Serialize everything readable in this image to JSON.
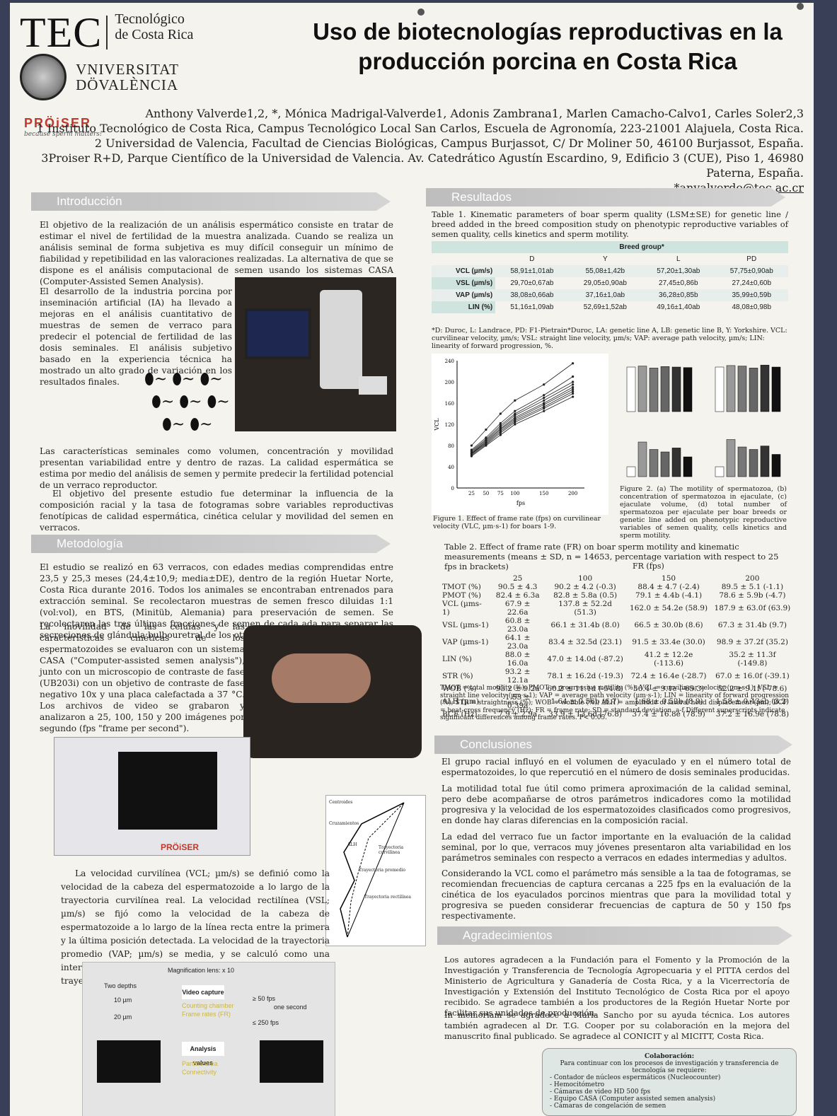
{
  "header": {
    "tec_logo": "TEC",
    "tec_name_1": "Tecnológico",
    "tec_name_2": "de Costa Rica",
    "uv_1": "VNIVERSITAT",
    "uv_2": "DÖVALÈNCIA",
    "proiser": "PRÖiSER",
    "proiser_tag": "because sperm matters!",
    "title_1": "Uso de biotecnologías reproductivas en la",
    "title_2": "producción porcina en Costa Rica"
  },
  "authors": {
    "line1": "Anthony Valverde1,2, *, Mónica Madrigal-Valverde1, Adonis Zambrana1, Marlen Camacho-Calvo1, Carles Soler2,3",
    "line2": "1 Instituto Tecnológico de Costa Rica, Campus Tecnológico Local San Carlos, Escuela de Agronomía, 223-21001 Alajuela, Costa Rica.",
    "line3": "2 Universidad de Valencia, Facultad de Ciencias Biológicas, Campus Burjassot, C/ Dr Moliner 50, 46100 Burjassot, España.",
    "line4": "3Proiser R+D, Parque Científico de la Universidad de Valencia. Av. Catedrático Agustín Escardino, 9, Edificio 3 (CUE), Piso 1, 46980 Paterna, España.",
    "email": "*anvalverde@tec.ac.cr"
  },
  "sections": {
    "intro": "Introducción",
    "metodo": "Metodología",
    "resultados": "Resultados",
    "conclusiones": "Conclusiones",
    "agradecimientos": "Agradecimientos"
  },
  "intro": {
    "p1": "El objetivo de la realización de un análisis espermático consiste en tratar de estimar el nivel de fertilidad de la muestra analizada. Cuando se realiza un análisis seminal de forma subjetiva es muy difícil conseguir un mínimo de fiabilidad y repetibilidad en las valoraciones realizadas. La alternativa de que se dispone es el análisis computacional de semen usando los sistemas CASA (Computer-Assisted Semen Analysis).",
    "p2": "El desarrollo de la industria porcina por inseminación artificial (IA) ha llevado a mejoras en el análisis cuantitativo de muestras de semen de verraco para predecir el potencial de fertilidad de las dosis seminales. El análisis subjetivo basado en la experiencia técnica ha mostrado un alto grado de variación en los resultados finales.",
    "p3": "Las características seminales como volumen, concentración y movilidad presentan variabilidad entre y dentro de razas. La calidad espermática se estima por medio del análisis de semen y permite predecir la fertilidad potencial de un verraco reproductor.",
    "p4": "El objetivo del presente estudio fue determinar la influencia de la composición racial y la tasa de fotogramas sobre variables reproductivas fenotípicas de calidad espermática, cinética celular y movilidad del semen en verracos."
  },
  "metodo": {
    "p1": "El estudio se realizó en 63 verracos, con edades medias comprendidas entre 23,5 y 25,3 meses (24,4±10,9; media±DE), dentro de la región Huetar Norte, Costa Rica durante 2016. Todos los animales se encontraban entrenados para extracción seminal. Se recolectaron muestras de semen fresco diluidas 1:1 (vol:vol), en BTS, (Minitüb, Alemania) para preservación de semen. Se recolectaron las tres últimas fracciones de semen de cada ada para separar las secreciones de glándula bulbouretral de los otros constituyentes del semen.",
    "p2": "La movilidad de las células y las características cinéticas de los espermatozoides se evaluaron con un sistema CASA (\"Computer-assisted semen analysis\"), junto con un microscopio de contraste de fase (UB203i) con un objetivo de contraste de fase negativo 10x y una placa calefactada a 37 °C. Los archivos de video se grabaron y analizaron a 25, 100, 150 y 200 imágenes por segundo (fps \"frame per second\").",
    "p3": "La velocidad curvilínea (VCL; µm/s) se definió como la velocidad de la cabeza del espermatozoide a lo largo de la trayectoria curvilínea real. La velocidad rectilínea (VSL; µm/s) se fijó como la velocidad de la cabeza de espermatozoide a lo largo de la línea recta entre la primera y la última posición detectada. La velocidad de la trayectoria promedio (VAP; µm/s) se media, y se calculó como una interpolación entre los puntos correspondientes a la trayectoria de la VCL.",
    "magnif": "Magnification lens: x 10",
    "two_depths": "Two depths",
    "d10": "10 µm",
    "d20": "20 µm",
    "video": "Video capture",
    "vid1": "Counting chamber",
    "vid2": "Frame rates (FR)",
    "analysis": "Analysis values",
    "an1": "Particle area",
    "an2": "Connectivity",
    "fps50": "≥ 50 fps",
    "onesec": "one second",
    "fps250": "≤ 250 fps",
    "traj_labels": [
      "Centroides",
      "Cruzamientos",
      "ALH",
      "Trayectoria curvilínea",
      "Trayectoria promedio",
      "Trayectoria rectilínea"
    ]
  },
  "table1": {
    "caption": "Table 1. Kinematic parameters of boar sperm quality (LSM±SE) for genetic line / breed added in the breed composition study on phenotypic reproductive variables of semen quality, cells kinetics and sperm motility.",
    "group": "Breed group*",
    "cols": [
      "D",
      "Y",
      "L",
      "PD"
    ],
    "rows": [
      {
        "label": "VCL (µm/s)",
        "vals": [
          "58,91±1,01ab",
          "55,08±1,42b",
          "57,20±1,30ab",
          "57,75±0,90ab"
        ]
      },
      {
        "label": "VSL (µm/s)",
        "vals": [
          "29,70±0,67ab",
          "29,05±0,90ab",
          "27,45±0,86b",
          "27,24±0,60b"
        ]
      },
      {
        "label": "VAP (µm/s)",
        "vals": [
          "38,08±0,66ab",
          "37,16±1,0ab",
          "36,28±0,85b",
          "35,99±0,59b"
        ]
      },
      {
        "label": "LIN (%)",
        "vals": [
          "51,16±1,09ab",
          "52,69±1,52ab",
          "49,16±1,40ab",
          "48,08±0,98b"
        ]
      }
    ],
    "note": "*D: Duroc, L: Landrace, PD: F1-Pietrain*Duroc, LA: genetic line A, LB: genetic line B, Y: Yorkshire. VCL: curvilinear velocity, µm/s; VSL: straight line velocity, µm/s; VAP: average path velocity, µm/s; LIN: linearity of forward progression, %."
  },
  "chart_data": {
    "type": "line",
    "x": [
      25,
      50,
      75,
      100,
      150,
      200
    ],
    "xlabel": "fps",
    "ylabel": "VCL",
    "ylim": [
      0,
      240
    ],
    "yticks": [
      0,
      40,
      80,
      120,
      160,
      200,
      240
    ],
    "series": [
      {
        "name": "1",
        "values": [
          80,
          110,
          140,
          165,
          195,
          235
        ]
      },
      {
        "name": "2",
        "values": [
          72,
          95,
          122,
          145,
          175,
          210
        ]
      },
      {
        "name": "3",
        "values": [
          70,
          92,
          118,
          140,
          170,
          200
        ]
      },
      {
        "name": "4",
        "values": [
          68,
          90,
          115,
          137,
          165,
          195
        ]
      },
      {
        "name": "5",
        "values": [
          66,
          88,
          112,
          133,
          160,
          190
        ]
      },
      {
        "name": "6",
        "values": [
          65,
          86,
          110,
          130,
          157,
          186
        ]
      },
      {
        "name": "7",
        "values": [
          64,
          84,
          107,
          127,
          153,
          182
        ]
      },
      {
        "name": "8",
        "values": [
          62,
          82,
          104,
          124,
          150,
          178
        ]
      },
      {
        "name": "9",
        "values": [
          60,
          80,
          100,
          120,
          145,
          172
        ]
      }
    ]
  },
  "figures": {
    "fig1": "Figure 1. Effect of frame rate (fps) on curvilinear velocity (VLC, µm·s-1) for boars 1-9.",
    "fig2": "Figure 2. (a) The motility of spermatozoa, (b) concentration of spermatozoa in ejaculate, (c) ejaculate volume, (d) total number of spermatozoa per ejaculate per boar breeds or genetic line added on phenotypic reproductive variables of semen quality, cells kinetics and sperm motility."
  },
  "table2": {
    "caption": "Table 2. Effect of frame rate (FR) on boar sperm motility and kinematic measurements (means ± SD, n = 14653, percentage variation with respect to 25 fps in brackets)",
    "fr": "FR (fps)",
    "cols": [
      "25",
      "100",
      "150",
      "200"
    ],
    "rows": [
      {
        "label": "TMOT (%)",
        "vals": [
          "90.5 ± 4.3",
          "90.2 ± 4.2 (-0.3)",
          "88.4 ± 4.7 (-2.4)",
          "89.5 ± 5.1 (-1.1)"
        ]
      },
      {
        "label": "PMOT (%)",
        "vals": [
          "82.4 ± 6.3a",
          "82.8 ± 5.8a (0.5)",
          "79.1 ± 4.4b (-4.1)",
          "78.6 ± 5.9b (-4.7)"
        ]
      },
      {
        "label": "VCL (µms-1)",
        "vals": [
          "67.9 ± 22.6a",
          "137.8 ± 52.2d (51.3)",
          "162.0 ± 54.2e (58.9)",
          "187.9 ± 63.0f (63.9)"
        ]
      },
      {
        "label": "VSL (µms-1)",
        "vals": [
          "60.8 ± 23.0a",
          "66.1 ± 31.4b (8.0)",
          "66.5 ± 30.0b (8.6)",
          "67.3 ± 31.4b (9.7)"
        ]
      },
      {
        "label": "VAP (µms-1)",
        "vals": [
          "64.1 ± 23.0a",
          "83.4 ± 32.5d (23.1)",
          "91.5 ± 33.4e (30.0)",
          "98.9 ± 37.2f (35.2)"
        ]
      },
      {
        "label": "LIN (%)",
        "vals": [
          "88.0 ± 16.0a",
          "47.0 ± 14.0d (-87.2)",
          "41.2 ± 12.2e (-113.6)",
          "35.2 ± 11.3f (-149.8)"
        ]
      },
      {
        "label": "STR (%)",
        "vals": [
          "93.2 ± 12.1a",
          "78.1 ± 16.2d (-19.3)",
          "72.4 ± 16.4e (-28.7)",
          "67.0 ± 16.0f (-39.1)"
        ]
      },
      {
        "label": "WOB (%)",
        "vals": [
          "93.2 ± 9.2a",
          "60.2 ± 11.1d (-54.8)",
          "56.4 ± 9.1e (-65.3)",
          "52.2 ± 9.1f (-78.6)"
        ]
      },
      {
        "label": "ALH (µm)",
        "vals": [
          "1.53 ± 0.39a",
          "1.64 ± 0.56b (6.7)",
          "1.68 ± 0.52b (8.9)",
          "1.58 ± 0.43ab (3.2)"
        ]
      },
      {
        "label": "BCF (Hz)",
        "vals": [
          "7.9 ± 2.9a",
          "33.9 ± 13.6d (76.8)",
          "37.4 ± 16.8e (78.9)",
          "37.2 ± 16.9e (78.8)"
        ]
      }
    ],
    "note": "TMOT = total motility (%); PMOT = progressive motility (%); VCL = curvilinear velocity (µm·s-1); VSL = straight line velocity (µm·s-1); VAP = average path velocity (µm·s-1); LIN = linearity of forward progression (%); STR = straightness (%); WOB = wobble (%); ALH = amplitude of lateral head displacement (µm); BCF = beat-cross frequency (Hz); FR = frame rate; SD = standard deviation. a-f Different superscripts indicate significant differences among frame rates. P< 0.05."
  },
  "conclusiones": {
    "p1": "El grupo racial influyó en el volumen de eyaculado y en el número total de espermatozoides, lo que repercutió en el número de dosis seminales producidas.",
    "p2": "La motilidad total fue útil como primera aproximación de la calidad seminal, pero debe acompañarse de otros parámetros indicadores como la motilidad progresiva y la velocidad de los espermatozoides clasificados como progresivos, en donde hay claras diferencias en la composición racial.",
    "p3": "La edad del verraco fue un factor importante en la evaluación de la calidad seminal, por lo que, verracos muy jóvenes presentaron alta variabilidad en los parámetros seminales con respecto a verracos en edades intermedias y adultos.",
    "p4": "Considerando la VCL como el parámetro más sensible a la taa de fotogramas, se recomiendan frecuencias de captura cercanas a 225 fps en la evaluación de la cinética de los eyaculados porcinos mientras que para la movilidad total y progresiva se pueden considerar frecuencias de captura de 50 y 150 fps respectivamente."
  },
  "agradecimientos": {
    "p1": "Los autores agradecen a la Fundación para el Fomento y la Promoción de la Investigación y Transferencia de Tecnología Agropecuaria y el PITTA cerdos del Ministerio de Agricultura y Ganadería de Costa Rica, y a la Vicerrectoría de Investigación y Extensión del Instituto Tecnológico de Costa Rica por el apoyo recibido. Se agradece también a los productores de la Región Huetar Norte por facilitar sus unidades de producción.",
    "p2": "In memoriam se agradece a María Sancho por su ayuda técnica. Los autores también agradecen al Dr. T.G. Cooper por su colaboración en la mejora del manuscrito final publicado. Se agradece al CONICIT y al MICITT, Costa Rica."
  },
  "collab": {
    "title": "Colaboración:",
    "intro": "Para continuar con los procesos de investigación y transferencia de tecnología se requiere:",
    "items": [
      "Contador de núcleos espermáticos (Nucleocounter)",
      "Hemocitómetro",
      "Cámaras de video HD 500 fps",
      "Equipo CASA (Computer assisted semen analysis)",
      "Cámaras de congelación de semen"
    ]
  }
}
